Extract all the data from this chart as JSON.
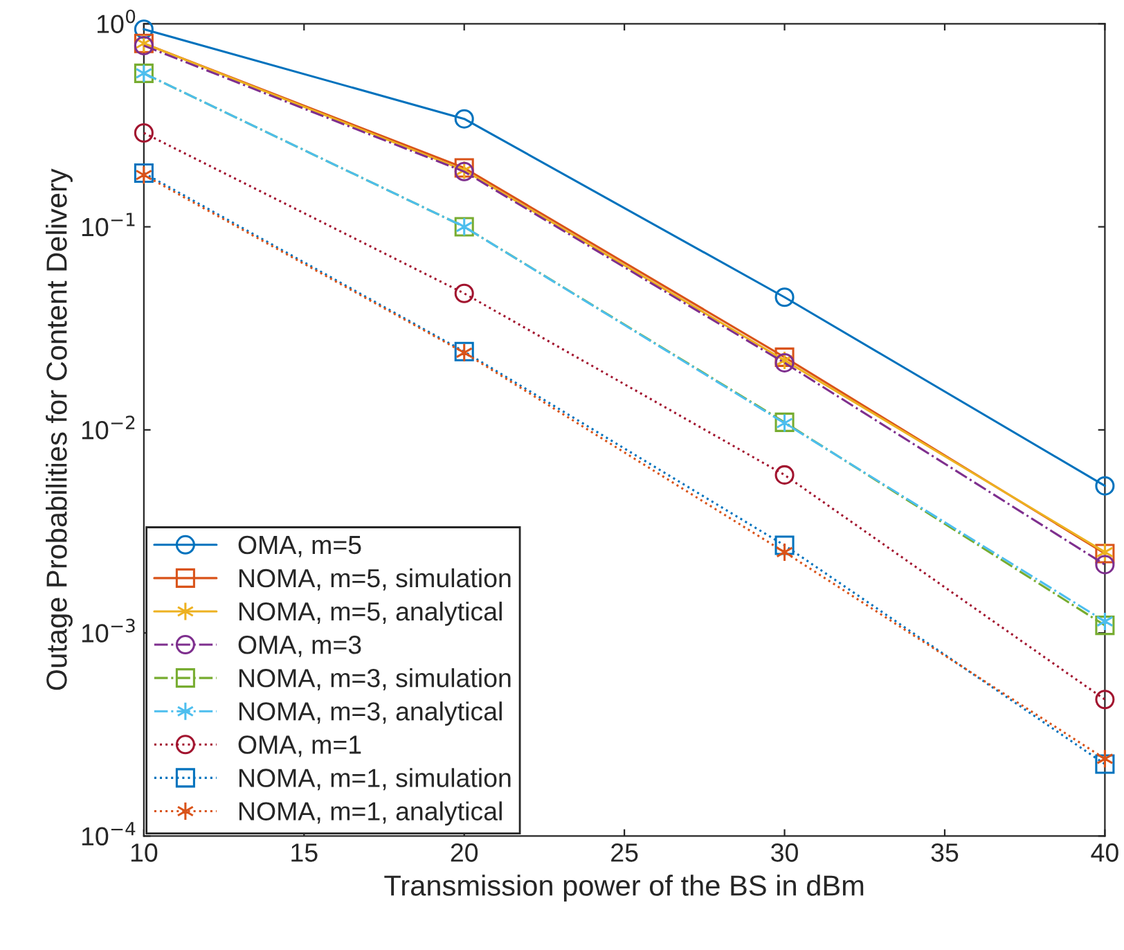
{
  "chart_data": {
    "type": "line",
    "xlabel": "Transmission power of the BS in dBm",
    "ylabel": "Outage Probabilities for Content Delivery",
    "x": [
      10,
      20,
      30,
      40
    ],
    "log": "y",
    "grid": false,
    "legend": "bottom left",
    "xlim": [
      10,
      40
    ],
    "xticks": [
      10,
      15,
      20,
      25,
      30,
      35,
      40
    ],
    "ylim": [
      0.0001,
      1
    ],
    "yticks": [
      {
        "value": 0.0001,
        "label": "10$^{−4}$"
      },
      {
        "value": 0.001,
        "label": "10$^{−3}$"
      },
      {
        "value": 0.01,
        "label": "10$^{−2}$"
      },
      {
        "value": 0.1,
        "label": "10$^{−1}$"
      },
      {
        "value": 1,
        "label": "10$^{0}$"
      }
    ],
    "series": [
      {
        "name": "OMA, m=5",
        "color": "#0072bd",
        "marker": "circle",
        "line_style": "solid",
        "values": [
          0.94,
          0.34,
          0.045,
          0.0053
        ]
      },
      {
        "name": "NOMA, m=5, simulation",
        "color": "#d95319",
        "marker": "square",
        "line_style": "solid",
        "values": [
          0.8,
          0.195,
          0.0228,
          0.00246
        ]
      },
      {
        "name": "NOMA, m=5, analytical",
        "color": "#edb120",
        "marker": "cross",
        "line_style": "solid",
        "values": [
          0.8,
          0.19,
          0.022,
          0.0025
        ]
      },
      {
        "name": "OMA, m=3",
        "color": "#7e2f8e",
        "marker": "circle",
        "line_style": "dashdot",
        "values": [
          0.78,
          0.187,
          0.0214,
          0.00217
        ]
      },
      {
        "name": "NOMA, m=3, simulation",
        "color": "#77ac30",
        "marker": "square",
        "line_style": "dashdot",
        "values": [
          0.57,
          0.1,
          0.0109,
          0.00109
        ]
      },
      {
        "name": "NOMA, m=3, analytical",
        "color": "#4dbeee",
        "marker": "cross",
        "line_style": "dashdot",
        "values": [
          0.57,
          0.1,
          0.0108,
          0.00114
        ]
      },
      {
        "name": "OMA, m=1",
        "color": "#a2142f",
        "marker": "circle",
        "line_style": "dotted",
        "values": [
          0.29,
          0.047,
          0.006,
          0.00047
        ]
      },
      {
        "name": "NOMA, m=1, simulation",
        "color": "#0072bd",
        "marker": "square",
        "line_style": "dotted",
        "values": [
          0.184,
          0.0243,
          0.0027,
          0.000226
        ]
      },
      {
        "name": "NOMA, m=1, analytical",
        "color": "#d95319",
        "marker": "cross",
        "line_style": "dotted",
        "values": [
          0.18,
          0.024,
          0.0025,
          0.00024
        ]
      }
    ]
  }
}
